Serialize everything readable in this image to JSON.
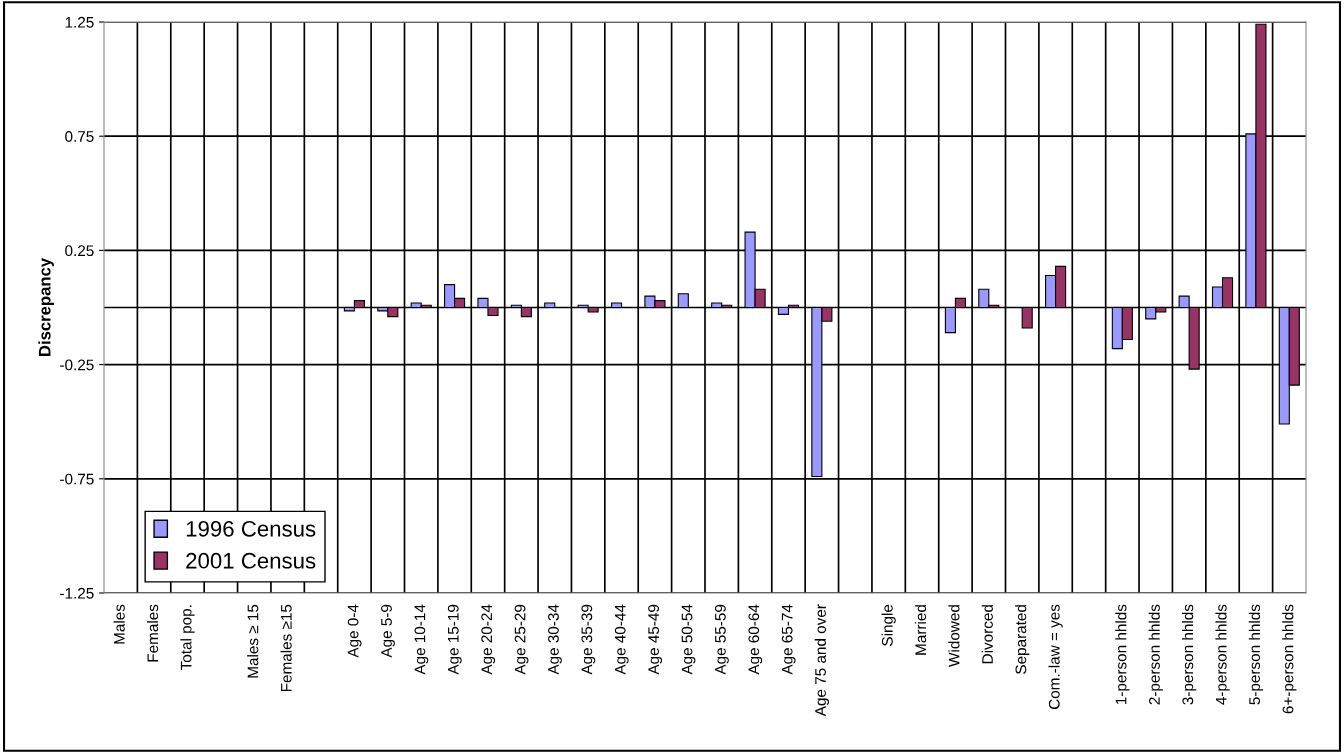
{
  "chart_data": {
    "type": "bar",
    "ylabel": "Discrepancy",
    "categories": [
      "Males",
      "Females",
      "Total pop.",
      null,
      "Males ≥ 15",
      "Females ≥15",
      null,
      "Age 0-4",
      "Age 5-9",
      "Age 10-14",
      "Age 15-19",
      "Age 20-24",
      "Age 25-29",
      "Age 30-34",
      "Age 35-39",
      "Age 40-44",
      "Age 45-49",
      "Age 50-54",
      "Age 55-59",
      "Age 60-64",
      "Age 65-74",
      "Age 75 and over",
      null,
      "Single",
      "Married",
      "Widowed",
      "Divorced",
      "Separated",
      "Com.-law = yes",
      null,
      "1-person hhlds",
      "2-person hhlds",
      "3-person hhlds",
      "4-person hhlds",
      "5-person hhlds",
      "6+-person hhlds"
    ],
    "series": [
      {
        "name": "1996 Census",
        "color": "#9999ff",
        "values": [
          null,
          null,
          null,
          null,
          null,
          null,
          null,
          -0.015,
          -0.015,
          0.02,
          0.1,
          0.04,
          0.01,
          0.02,
          0.01,
          0.02,
          0.05,
          0.06,
          0.02,
          0.33,
          -0.03,
          -0.74,
          null,
          null,
          null,
          -0.11,
          0.08,
          null,
          0.14,
          null,
          -0.18,
          -0.05,
          0.05,
          0.09,
          0.76,
          -0.51
        ]
      },
      {
        "name": "2001 Census",
        "color": "#993366",
        "values": [
          null,
          null,
          null,
          null,
          null,
          null,
          null,
          0.03,
          -0.04,
          0.01,
          0.04,
          -0.035,
          -0.04,
          null,
          -0.02,
          null,
          0.03,
          null,
          0.01,
          0.08,
          0.01,
          -0.06,
          null,
          null,
          null,
          0.04,
          0.01,
          -0.09,
          0.18,
          null,
          -0.14,
          -0.02,
          -0.27,
          0.13,
          1.24,
          -0.34
        ]
      }
    ],
    "ylim": [
      -1.25,
      1.25
    ],
    "yticks": [
      -1.25,
      -0.75,
      -0.25,
      0.25,
      0.75,
      1.25
    ],
    "ref_lines": [
      {
        "axis": "y",
        "value": 0,
        "color": "#000000"
      }
    ],
    "grid": true,
    "legend": "bottom left"
  }
}
